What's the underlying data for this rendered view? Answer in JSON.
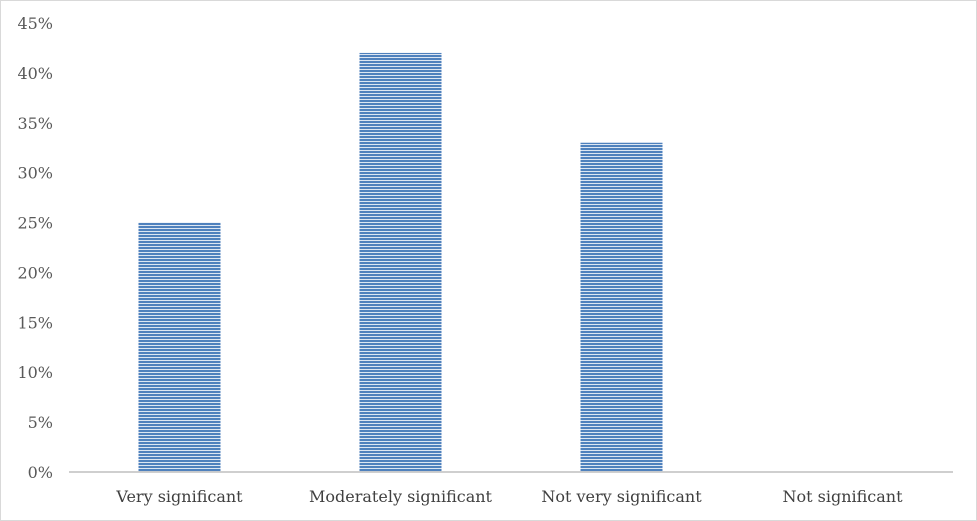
{
  "chart_data": {
    "type": "bar",
    "title": "",
    "xlabel": "",
    "ylabel": "",
    "categories": [
      "Very significant",
      "Moderately significant",
      "Not very significant",
      "Not significant"
    ],
    "values": [
      25,
      42,
      33,
      0
    ],
    "ylim": [
      0,
      45
    ],
    "yticks": [
      0,
      5,
      10,
      15,
      20,
      25,
      30,
      35,
      40,
      45
    ],
    "ytick_labels": [
      "0%",
      "5%",
      "10%",
      "15%",
      "20%",
      "25%",
      "30%",
      "35%",
      "40%",
      "45%"
    ],
    "grid": false,
    "legend": "none",
    "bar_color": "#4f81bd",
    "bar_fill_pattern": "horizontal-stripes"
  }
}
